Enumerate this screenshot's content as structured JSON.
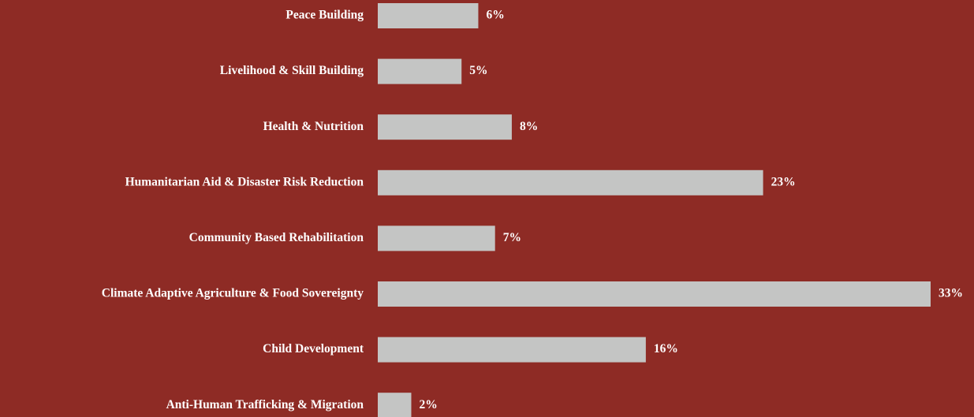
{
  "chart_data": {
    "type": "bar",
    "orientation": "horizontal",
    "categories": [
      "Peace Building",
      "Livelihood & Skill Building",
      "Health & Nutrition",
      "Humanitarian Aid & Disaster Risk Reduction",
      "Community Based Rehabilitation",
      "Climate Adaptive Agriculture & Food Sovereignty",
      "Child Development",
      "Anti-Human Trafficking & Migration"
    ],
    "values": [
      6,
      5,
      8,
      23,
      7,
      33,
      16,
      2
    ],
    "value_labels": [
      "6%",
      "5%",
      "8%",
      "23%",
      "7%",
      "33%",
      "16%",
      "2%"
    ],
    "color": "#c4c5c4"
  }
}
